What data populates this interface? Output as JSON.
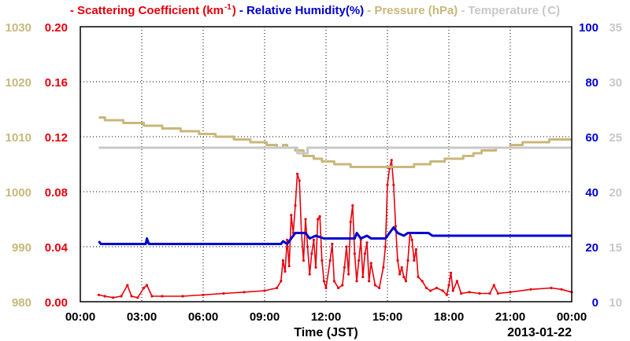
{
  "chart_data": {
    "type": "line",
    "xlabel": "Time (JST)",
    "date_label": "2013-01-22",
    "x_ticks": [
      "00:00",
      "03:00",
      "06:00",
      "09:00",
      "12:00",
      "15:00",
      "18:00",
      "21:00",
      "00:00"
    ],
    "xlim_hours": [
      0,
      24
    ],
    "grid": true,
    "legend_placement": "top",
    "axes": {
      "pressure": {
        "label": "Pressure (hPa)",
        "color": "#c8b87a",
        "range": [
          980,
          1030
        ],
        "ticks": [
          "980",
          "990",
          "1000",
          "1010",
          "1020",
          "1030"
        ]
      },
      "scattering": {
        "label": "Scattering Coefficient (km⁻¹)",
        "color": "#e8000b",
        "range": [
          0,
          0.2
        ],
        "ticks": [
          "0.00",
          "0.04",
          "0.08",
          "0.12",
          "0.16",
          "0.20"
        ]
      },
      "humidity": {
        "label": "Relative Humidity(%)",
        "color": "#0000d0",
        "range": [
          0,
          100
        ],
        "ticks": [
          "0",
          "20",
          "40",
          "60",
          "80",
          "100"
        ]
      },
      "temperature": {
        "label": "Temperature (°C)",
        "color": "#c8c8c8",
        "range": [
          10,
          35
        ],
        "ticks": [
          "10",
          "15",
          "20",
          "25",
          "30",
          "35"
        ]
      }
    },
    "legend": [
      {
        "text": "- Scattering Coefficient (km",
        "sup": "-1",
        "tail": ")",
        "color": "#e8000b"
      },
      {
        "text": "- Relative Humidity(%)",
        "color": "#0000d0"
      },
      {
        "text": "- Pressure (hPa)",
        "color": "#c8b87a"
      },
      {
        "text": "- Temperature (",
        "tail": "C)",
        "color": "#c8c8c8"
      }
    ],
    "series": [
      {
        "name": "Scattering Coefficient",
        "axis": "scattering",
        "color": "#e8000b",
        "points": [
          [
            0.9,
            0.005
          ],
          [
            1.2,
            0.004
          ],
          [
            1.6,
            0.003
          ],
          [
            2.0,
            0.004
          ],
          [
            2.3,
            0.012
          ],
          [
            2.5,
            0.004
          ],
          [
            2.8,
            0.003
          ],
          [
            3.1,
            0.01
          ],
          [
            3.25,
            0.012
          ],
          [
            3.5,
            0.004
          ],
          [
            4.0,
            0.004
          ],
          [
            5.0,
            0.004
          ],
          [
            6.0,
            0.005
          ],
          [
            7.0,
            0.006
          ],
          [
            8.0,
            0.007
          ],
          [
            9.0,
            0.008
          ],
          [
            9.6,
            0.01
          ],
          [
            9.8,
            0.015
          ],
          [
            9.9,
            0.03
          ],
          [
            10.0,
            0.022
          ],
          [
            10.1,
            0.045
          ],
          [
            10.2,
            0.026
          ],
          [
            10.3,
            0.063
          ],
          [
            10.4,
            0.05
          ],
          [
            10.5,
            0.07
          ],
          [
            10.6,
            0.093
          ],
          [
            10.7,
            0.088
          ],
          [
            10.8,
            0.05
          ],
          [
            10.9,
            0.03
          ],
          [
            11.0,
            0.06
          ],
          [
            11.1,
            0.04
          ],
          [
            11.2,
            0.02
          ],
          [
            11.3,
            0.035
          ],
          [
            11.4,
            0.045
          ],
          [
            11.5,
            0.025
          ],
          [
            11.6,
            0.06
          ],
          [
            11.7,
            0.062
          ],
          [
            11.8,
            0.03
          ],
          [
            11.9,
            0.015
          ],
          [
            12.0,
            0.01
          ],
          [
            12.2,
            0.03
          ],
          [
            12.3,
            0.042
          ],
          [
            12.4,
            0.015
          ],
          [
            12.6,
            0.01
          ],
          [
            12.8,
            0.012
          ],
          [
            12.9,
            0.025
          ],
          [
            13.0,
            0.04
          ],
          [
            13.1,
            0.02
          ],
          [
            13.2,
            0.058
          ],
          [
            13.3,
            0.07
          ],
          [
            13.4,
            0.035
          ],
          [
            13.5,
            0.015
          ],
          [
            13.6,
            0.03
          ],
          [
            13.7,
            0.045
          ],
          [
            13.8,
            0.018
          ],
          [
            13.9,
            0.035
          ],
          [
            14.0,
            0.043
          ],
          [
            14.1,
            0.015
          ],
          [
            14.2,
            0.028
          ],
          [
            14.4,
            0.012
          ],
          [
            14.6,
            0.01
          ],
          [
            14.8,
            0.025
          ],
          [
            14.9,
            0.04
          ],
          [
            15.0,
            0.085
          ],
          [
            15.1,
            0.097
          ],
          [
            15.2,
            0.103
          ],
          [
            15.3,
            0.085
          ],
          [
            15.4,
            0.055
          ],
          [
            15.5,
            0.03
          ],
          [
            15.6,
            0.02
          ],
          [
            15.7,
            0.025
          ],
          [
            15.8,
            0.018
          ],
          [
            15.9,
            0.015
          ],
          [
            16.0,
            0.03
          ],
          [
            16.1,
            0.05
          ],
          [
            16.2,
            0.045
          ],
          [
            16.3,
            0.03
          ],
          [
            16.4,
            0.038
          ],
          [
            16.5,
            0.018
          ],
          [
            16.7,
            0.015
          ],
          [
            16.9,
            0.01
          ],
          [
            17.1,
            0.008
          ],
          [
            17.4,
            0.01
          ],
          [
            17.7,
            0.008
          ],
          [
            17.9,
            0.005
          ],
          [
            18.0,
            0.012
          ],
          [
            18.1,
            0.021
          ],
          [
            18.2,
            0.008
          ],
          [
            18.4,
            0.015
          ],
          [
            18.6,
            0.006
          ],
          [
            19.0,
            0.007
          ],
          [
            19.5,
            0.006
          ],
          [
            20.0,
            0.006
          ],
          [
            20.2,
            0.012
          ],
          [
            20.4,
            0.006
          ],
          [
            21.0,
            0.007
          ],
          [
            22.0,
            0.009
          ],
          [
            23.0,
            0.01
          ],
          [
            23.5,
            0.009
          ],
          [
            24.0,
            0.007
          ]
        ]
      },
      {
        "name": "Relative Humidity",
        "axis": "humidity",
        "color": "#0000d0",
        "points": [
          [
            0.9,
            22
          ],
          [
            1.0,
            21
          ],
          [
            3.2,
            21
          ],
          [
            3.25,
            23
          ],
          [
            3.35,
            21
          ],
          [
            9.8,
            21
          ],
          [
            9.9,
            22
          ],
          [
            10.1,
            21
          ],
          [
            10.3,
            23
          ],
          [
            10.5,
            25
          ],
          [
            11.0,
            25
          ],
          [
            11.2,
            23
          ],
          [
            11.5,
            24
          ],
          [
            11.9,
            23
          ],
          [
            13.4,
            23
          ],
          [
            13.5,
            25
          ],
          [
            13.7,
            23
          ],
          [
            14.0,
            24
          ],
          [
            14.2,
            23
          ],
          [
            14.9,
            23
          ],
          [
            15.0,
            24
          ],
          [
            15.3,
            27
          ],
          [
            15.5,
            25
          ],
          [
            15.8,
            24
          ],
          [
            16.0,
            25
          ],
          [
            16.5,
            25
          ],
          [
            17.0,
            25
          ],
          [
            17.2,
            24
          ],
          [
            24.0,
            24
          ]
        ]
      },
      {
        "name": "Pressure",
        "axis": "pressure",
        "color": "#c8b87a",
        "points": [
          [
            0.9,
            1013.5
          ],
          [
            1.2,
            1013.5
          ],
          [
            1.2,
            1013
          ],
          [
            2.1,
            1013
          ],
          [
            2.1,
            1012.5
          ],
          [
            3.1,
            1012.5
          ],
          [
            3.1,
            1012
          ],
          [
            4.0,
            1012
          ],
          [
            4.0,
            1011.5
          ],
          [
            4.9,
            1011.5
          ],
          [
            4.9,
            1011
          ],
          [
            5.8,
            1011
          ],
          [
            5.8,
            1010.5
          ],
          [
            6.6,
            1010.5
          ],
          [
            6.6,
            1010
          ],
          [
            7.5,
            1010
          ],
          [
            7.5,
            1009.5
          ],
          [
            8.3,
            1009.5
          ],
          [
            8.3,
            1009
          ],
          [
            9.1,
            1009
          ],
          [
            9.1,
            1008.5
          ],
          [
            9.6,
            1008.5
          ],
          [
            9.6,
            1008
          ],
          [
            9.9,
            1008
          ],
          [
            9.9,
            1008.5
          ],
          [
            10.1,
            1008.5
          ],
          [
            10.1,
            1008
          ],
          [
            10.5,
            1008
          ],
          [
            10.5,
            1007.5
          ],
          [
            10.9,
            1007.5
          ],
          [
            10.9,
            1006.5
          ],
          [
            11.4,
            1006.5
          ],
          [
            11.4,
            1006
          ],
          [
            11.8,
            1006
          ],
          [
            11.8,
            1005.5
          ],
          [
            12.4,
            1005.5
          ],
          [
            12.4,
            1005
          ],
          [
            13.2,
            1005
          ],
          [
            13.2,
            1004.5
          ],
          [
            16.3,
            1004.5
          ],
          [
            16.3,
            1005
          ],
          [
            17.1,
            1005
          ],
          [
            17.1,
            1005.5
          ],
          [
            17.8,
            1005.5
          ],
          [
            17.8,
            1006
          ],
          [
            18.7,
            1006
          ],
          [
            18.7,
            1006.5
          ],
          [
            19.2,
            1006.5
          ],
          [
            19.2,
            1007
          ],
          [
            19.6,
            1007
          ],
          [
            19.6,
            1007.5
          ],
          [
            20.3,
            1007.5
          ],
          [
            20.3,
            1008
          ],
          [
            21.0,
            1008
          ],
          [
            21.0,
            1008.5
          ],
          [
            21.6,
            1008.5
          ],
          [
            21.6,
            1009
          ],
          [
            22.9,
            1009
          ],
          [
            22.9,
            1009.5
          ],
          [
            24.0,
            1009.5
          ]
        ]
      },
      {
        "name": "Temperature",
        "axis": "temperature",
        "color": "#c8c8c8",
        "points": [
          [
            0.9,
            24
          ],
          [
            10.6,
            24
          ],
          [
            10.6,
            23.5
          ],
          [
            11.1,
            23.5
          ],
          [
            11.1,
            24
          ],
          [
            24.0,
            24
          ]
        ]
      }
    ]
  }
}
